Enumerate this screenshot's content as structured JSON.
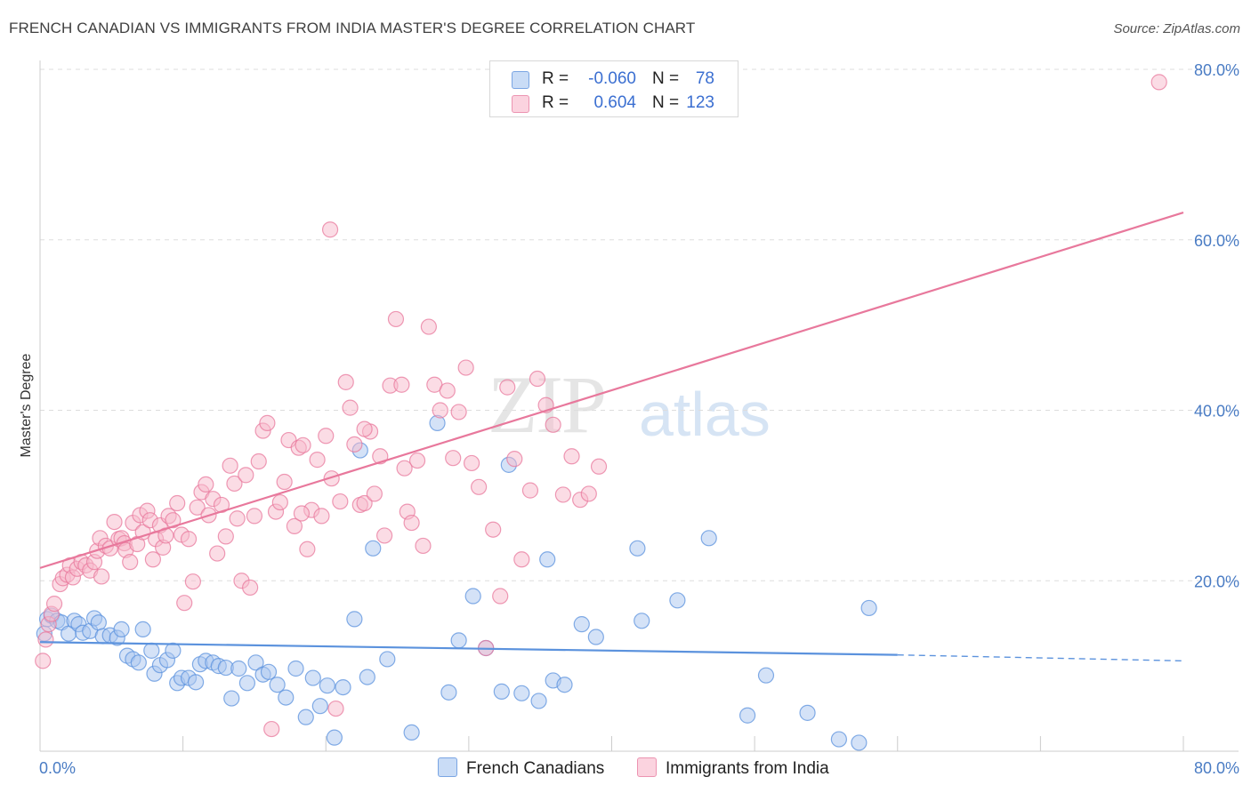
{
  "header": {
    "title": "FRENCH CANADIAN VS IMMIGRANTS FROM INDIA MASTER'S DEGREE CORRELATION CHART",
    "source": "Source: ZipAtlas.com"
  },
  "watermark": {
    "zip": "ZIP",
    "atlas": "atlas"
  },
  "legend": {
    "rows": [
      {
        "r_label": "R =",
        "r_value": "-0.060",
        "n_label": "N =",
        "n_value": "78",
        "color": "#a9c6ef"
      },
      {
        "r_label": "R =",
        "r_value": "0.604",
        "n_label": "N =",
        "n_value": "123",
        "color": "#f7b9cc"
      }
    ]
  },
  "bottom_legend": {
    "items": [
      {
        "label": "French Canadians",
        "color": "#a9c6ef"
      },
      {
        "label": "Immigrants from India",
        "color": "#f7b9cc"
      }
    ]
  },
  "chart_data": {
    "type": "scatter",
    "title": "FRENCH CANADIAN VS IMMIGRANTS FROM INDIA MASTER'S DEGREE CORRELATION CHART",
    "xlabel": "",
    "ylabel": "Master's Degree",
    "xlim": [
      0,
      80
    ],
    "ylim": [
      0,
      80
    ],
    "x_tick_labels": [
      "0.0%",
      "80.0%"
    ],
    "y_ticks": [
      20,
      40,
      60,
      80
    ],
    "y_tick_labels": [
      "20.0%",
      "40.0%",
      "60.0%",
      "80.0%"
    ],
    "grid": true,
    "legend_position": "top-center",
    "series": [
      {
        "name": "French Canadians",
        "color": "#5b92dd",
        "fill": "#a9c6ef",
        "r": -0.06,
        "n": 78,
        "trend": {
          "x": [
            0,
            60
          ],
          "y": [
            12.8,
            11.3
          ]
        },
        "trend_dashed": {
          "x": [
            60,
            80
          ],
          "y": [
            11.3,
            10.6
          ]
        },
        "points": [
          [
            0.3,
            13.8
          ],
          [
            0.5,
            15.5
          ],
          [
            0.8,
            15.9
          ],
          [
            1.2,
            15.3
          ],
          [
            1.5,
            15.1
          ],
          [
            2.0,
            13.8
          ],
          [
            2.4,
            15.3
          ],
          [
            2.7,
            14.9
          ],
          [
            3.0,
            13.9
          ],
          [
            3.5,
            14.1
          ],
          [
            3.8,
            15.6
          ],
          [
            4.1,
            15.1
          ],
          [
            4.4,
            13.5
          ],
          [
            4.9,
            13.6
          ],
          [
            5.4,
            13.3
          ],
          [
            5.7,
            14.3
          ],
          [
            6.1,
            11.2
          ],
          [
            6.5,
            10.8
          ],
          [
            6.9,
            10.4
          ],
          [
            7.2,
            14.3
          ],
          [
            7.8,
            11.8
          ],
          [
            8.0,
            9.1
          ],
          [
            8.4,
            10.1
          ],
          [
            8.9,
            10.7
          ],
          [
            9.3,
            11.8
          ],
          [
            9.6,
            8.0
          ],
          [
            9.9,
            8.6
          ],
          [
            10.4,
            8.6
          ],
          [
            10.9,
            8.1
          ],
          [
            11.2,
            10.2
          ],
          [
            11.6,
            10.6
          ],
          [
            12.1,
            10.4
          ],
          [
            12.5,
            10.0
          ],
          [
            13.0,
            9.8
          ],
          [
            13.4,
            6.2
          ],
          [
            13.9,
            9.7
          ],
          [
            14.5,
            8.0
          ],
          [
            15.1,
            10.4
          ],
          [
            15.6,
            9.0
          ],
          [
            16.0,
            9.3
          ],
          [
            16.6,
            7.8
          ],
          [
            17.2,
            6.3
          ],
          [
            17.9,
            9.7
          ],
          [
            18.6,
            4.0
          ],
          [
            19.1,
            8.6
          ],
          [
            19.6,
            5.3
          ],
          [
            20.1,
            7.7
          ],
          [
            20.6,
            1.6
          ],
          [
            21.2,
            7.5
          ],
          [
            22.0,
            15.5
          ],
          [
            22.4,
            35.3
          ],
          [
            22.9,
            8.7
          ],
          [
            23.3,
            23.8
          ],
          [
            24.3,
            10.8
          ],
          [
            26.0,
            2.2
          ],
          [
            27.8,
            38.5
          ],
          [
            28.6,
            6.9
          ],
          [
            29.3,
            13.0
          ],
          [
            30.3,
            18.2
          ],
          [
            31.2,
            12.1
          ],
          [
            32.3,
            7.0
          ],
          [
            32.8,
            33.6
          ],
          [
            33.7,
            6.8
          ],
          [
            34.9,
            5.9
          ],
          [
            35.5,
            22.5
          ],
          [
            35.9,
            8.3
          ],
          [
            36.7,
            7.8
          ],
          [
            37.9,
            14.9
          ],
          [
            38.9,
            13.4
          ],
          [
            41.8,
            23.8
          ],
          [
            42.1,
            15.3
          ],
          [
            44.6,
            17.7
          ],
          [
            46.8,
            25.0
          ],
          [
            49.5,
            4.2
          ],
          [
            50.8,
            8.9
          ],
          [
            53.7,
            4.5
          ],
          [
            55.9,
            1.4
          ],
          [
            57.3,
            1.0
          ],
          [
            58.0,
            16.8
          ]
        ]
      },
      {
        "name": "Immigrants from India",
        "color": "#e8789c",
        "fill": "#f7b9cc",
        "r": 0.604,
        "n": 123,
        "trend": {
          "x": [
            0,
            80
          ],
          "y": [
            21.5,
            63.2
          ]
        },
        "points": [
          [
            0.2,
            10.6
          ],
          [
            0.4,
            13.1
          ],
          [
            0.6,
            14.9
          ],
          [
            0.8,
            16.1
          ],
          [
            1.0,
            17.3
          ],
          [
            1.4,
            19.6
          ],
          [
            1.6,
            20.3
          ],
          [
            1.9,
            20.7
          ],
          [
            2.1,
            21.8
          ],
          [
            2.3,
            20.4
          ],
          [
            2.6,
            21.4
          ],
          [
            2.9,
            22.2
          ],
          [
            3.2,
            21.8
          ],
          [
            3.5,
            21.2
          ],
          [
            3.8,
            22.2
          ],
          [
            4.0,
            23.5
          ],
          [
            4.2,
            25.0
          ],
          [
            4.3,
            20.5
          ],
          [
            4.6,
            24.1
          ],
          [
            4.9,
            23.8
          ],
          [
            5.2,
            26.9
          ],
          [
            5.5,
            24.9
          ],
          [
            5.7,
            25.0
          ],
          [
            5.9,
            24.4
          ],
          [
            6.0,
            23.6
          ],
          [
            6.3,
            22.2
          ],
          [
            6.5,
            26.8
          ],
          [
            6.8,
            24.3
          ],
          [
            7.0,
            27.7
          ],
          [
            7.2,
            25.7
          ],
          [
            7.5,
            28.2
          ],
          [
            7.7,
            27.1
          ],
          [
            7.9,
            22.5
          ],
          [
            8.1,
            24.9
          ],
          [
            8.4,
            26.5
          ],
          [
            8.6,
            23.9
          ],
          [
            8.8,
            25.3
          ],
          [
            9.0,
            27.6
          ],
          [
            9.3,
            27.1
          ],
          [
            9.6,
            29.1
          ],
          [
            9.9,
            25.4
          ],
          [
            10.1,
            17.4
          ],
          [
            10.4,
            24.9
          ],
          [
            10.7,
            19.9
          ],
          [
            11.0,
            28.6
          ],
          [
            11.3,
            30.4
          ],
          [
            11.6,
            31.3
          ],
          [
            11.8,
            27.7
          ],
          [
            12.1,
            29.6
          ],
          [
            12.4,
            23.2
          ],
          [
            12.7,
            28.9
          ],
          [
            13.0,
            25.2
          ],
          [
            13.3,
            33.5
          ],
          [
            13.6,
            31.4
          ],
          [
            13.8,
            27.3
          ],
          [
            14.1,
            20.0
          ],
          [
            14.4,
            32.4
          ],
          [
            14.7,
            19.2
          ],
          [
            15.0,
            27.6
          ],
          [
            15.3,
            34.0
          ],
          [
            15.6,
            37.6
          ],
          [
            15.9,
            38.5
          ],
          [
            16.2,
            2.6
          ],
          [
            16.5,
            28.1
          ],
          [
            16.8,
            29.2
          ],
          [
            17.1,
            31.6
          ],
          [
            17.4,
            36.5
          ],
          [
            17.8,
            26.4
          ],
          [
            18.1,
            35.6
          ],
          [
            18.4,
            35.9
          ],
          [
            18.7,
            23.7
          ],
          [
            19.0,
            28.3
          ],
          [
            19.4,
            34.2
          ],
          [
            19.7,
            27.6
          ],
          [
            20.0,
            37.0
          ],
          [
            20.4,
            32.0
          ],
          [
            20.7,
            5.0
          ],
          [
            21.0,
            29.3
          ],
          [
            21.4,
            43.3
          ],
          [
            21.7,
            40.3
          ],
          [
            22.0,
            36.0
          ],
          [
            22.4,
            28.9
          ],
          [
            22.7,
            29.1
          ],
          [
            23.1,
            37.5
          ],
          [
            23.4,
            30.2
          ],
          [
            23.8,
            34.6
          ],
          [
            24.1,
            25.3
          ],
          [
            24.5,
            42.9
          ],
          [
            24.9,
            50.7
          ],
          [
            25.3,
            43.0
          ],
          [
            25.7,
            28.1
          ],
          [
            26.0,
            26.8
          ],
          [
            26.4,
            34.1
          ],
          [
            26.8,
            24.1
          ],
          [
            27.2,
            49.8
          ],
          [
            27.6,
            43.0
          ],
          [
            28.0,
            40.0
          ],
          [
            28.5,
            42.3
          ],
          [
            28.9,
            34.4
          ],
          [
            29.3,
            39.8
          ],
          [
            29.8,
            45.0
          ],
          [
            30.2,
            33.8
          ],
          [
            30.7,
            31.0
          ],
          [
            31.2,
            12.1
          ],
          [
            31.7,
            26.0
          ],
          [
            32.2,
            18.2
          ],
          [
            32.7,
            42.7
          ],
          [
            33.2,
            34.3
          ],
          [
            33.7,
            22.5
          ],
          [
            34.3,
            30.6
          ],
          [
            34.8,
            43.7
          ],
          [
            35.4,
            40.6
          ],
          [
            35.9,
            38.3
          ],
          [
            36.6,
            30.1
          ],
          [
            37.2,
            34.6
          ],
          [
            37.8,
            29.5
          ],
          [
            38.4,
            30.2
          ],
          [
            39.1,
            33.4
          ],
          [
            20.3,
            61.2
          ],
          [
            78.3,
            78.5
          ],
          [
            22.7,
            37.8
          ],
          [
            18.3,
            27.9
          ],
          [
            25.5,
            33.2
          ]
        ]
      }
    ]
  }
}
